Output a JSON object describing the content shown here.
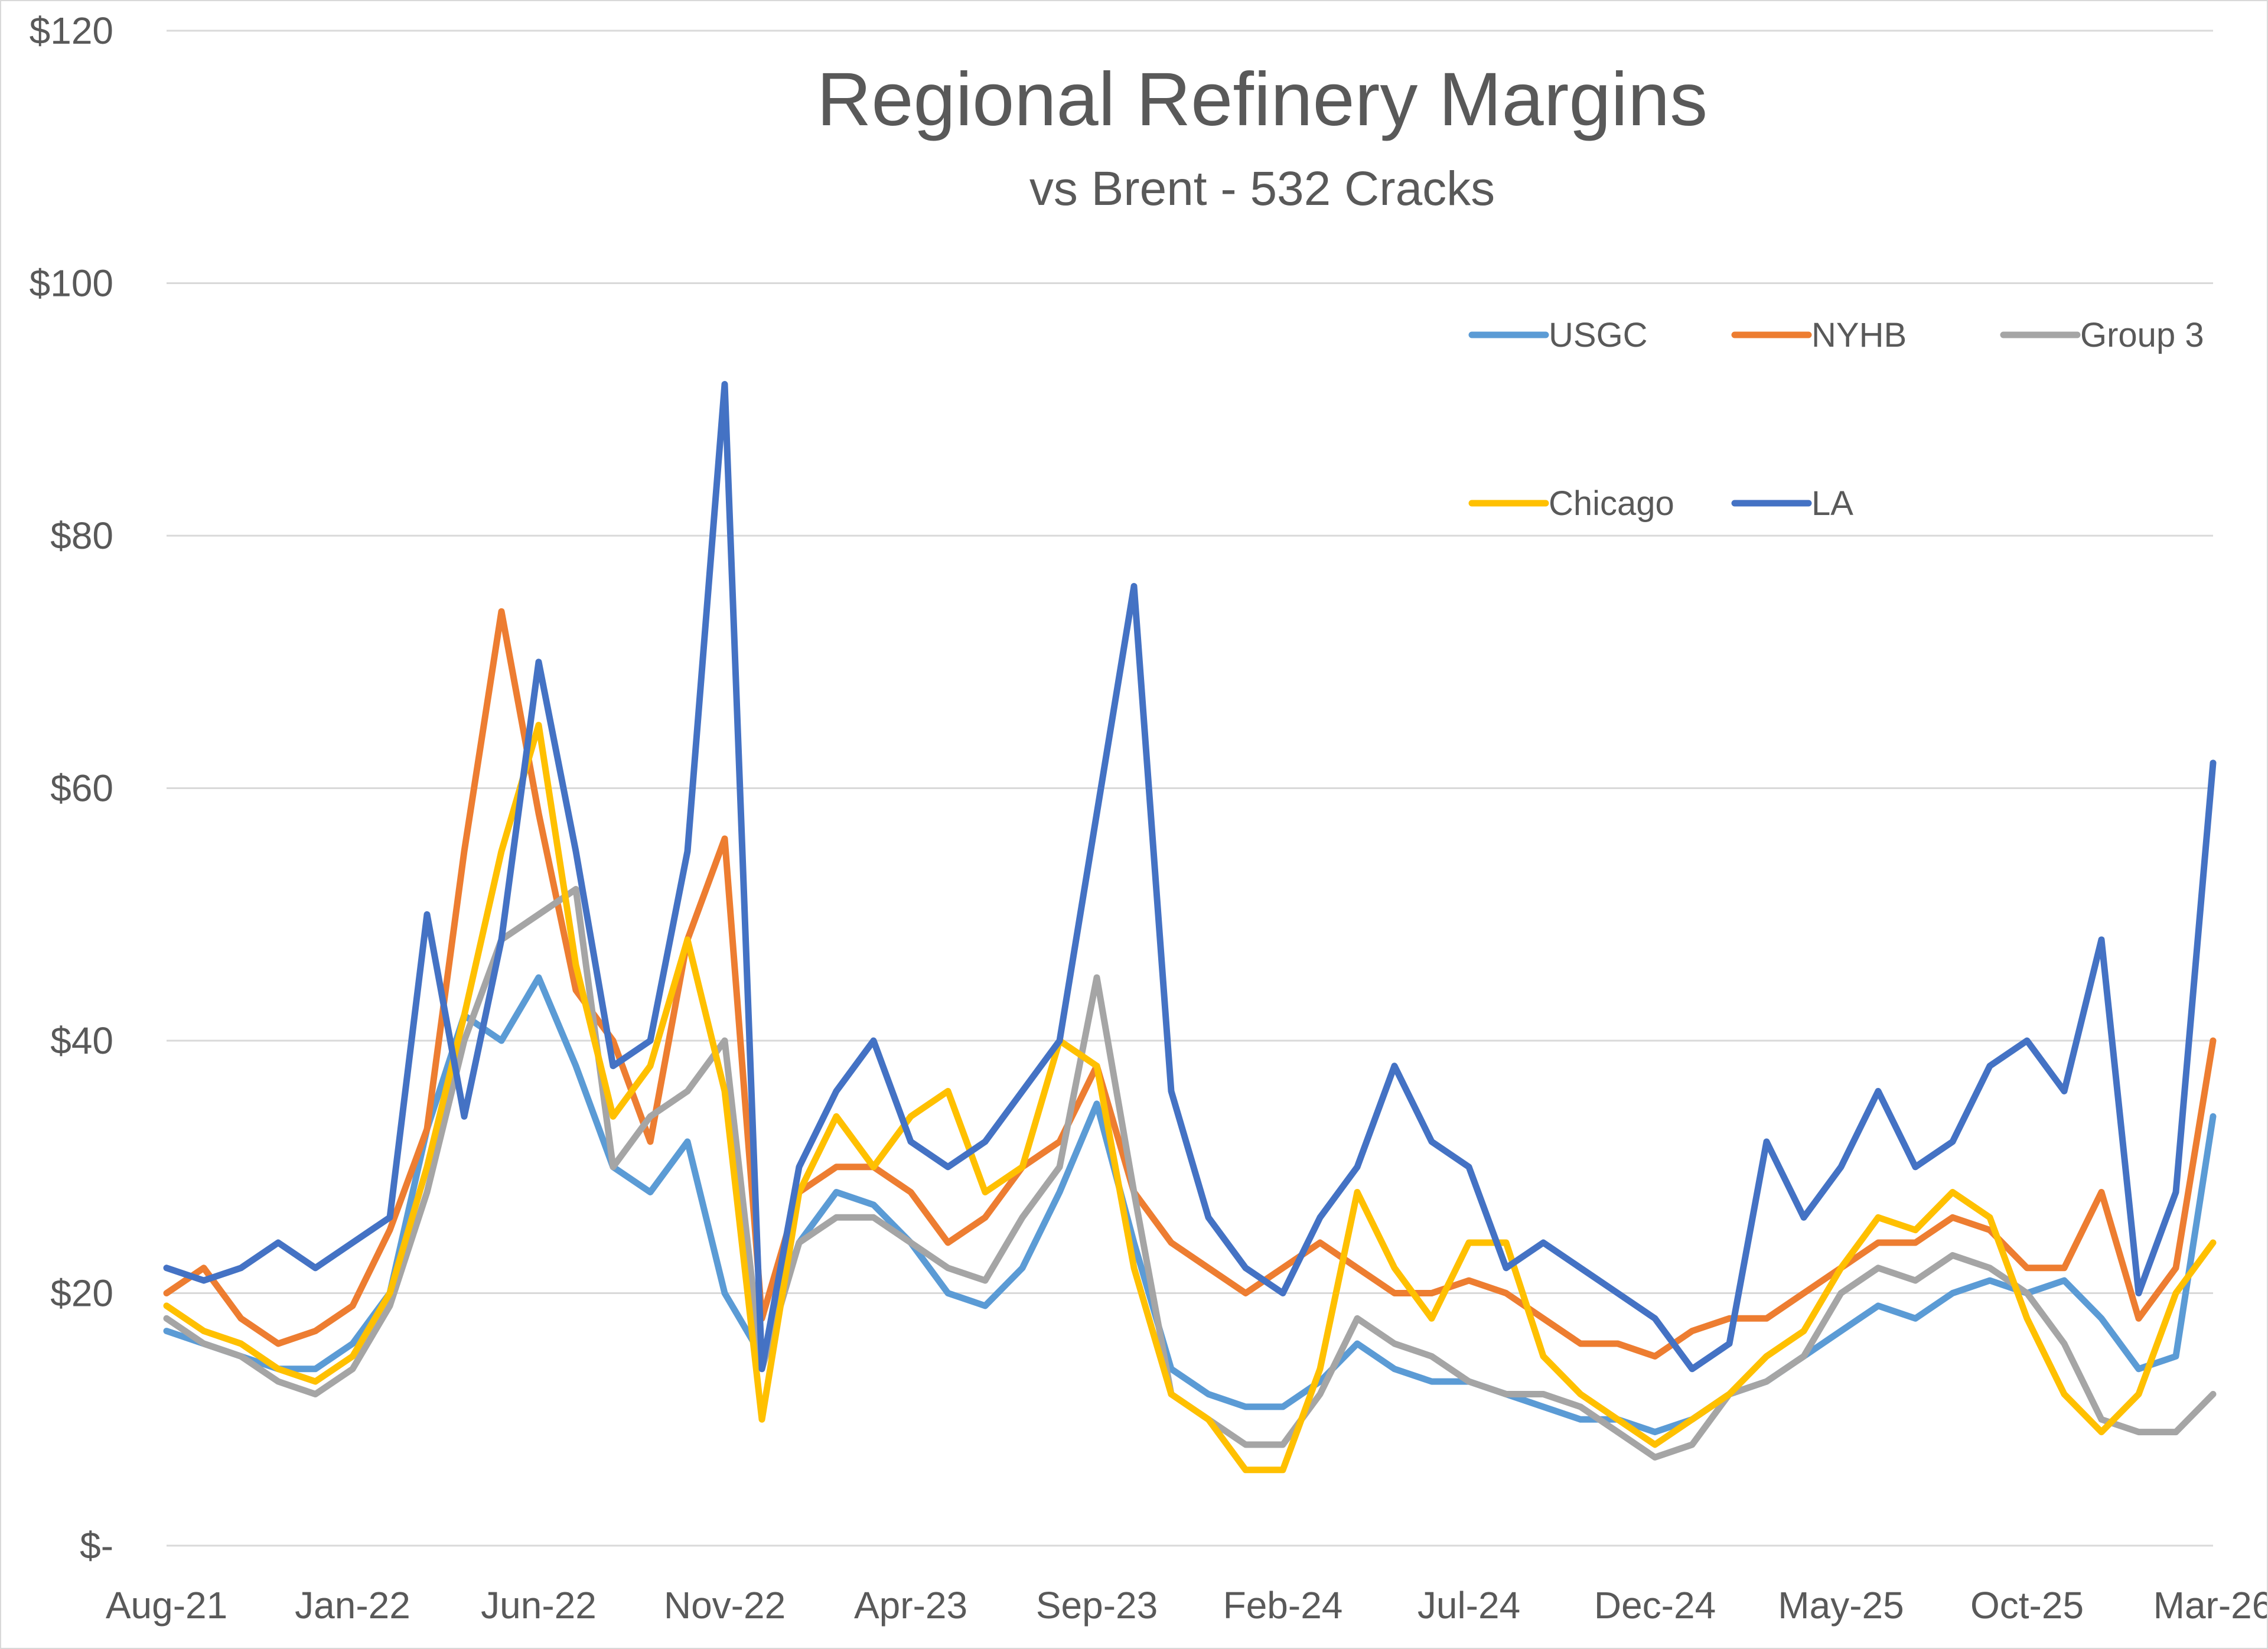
{
  "chart_data": {
    "type": "line",
    "title": "Regional Refinery Margins",
    "subtitle": "vs Brent - 532 Cracks",
    "xlabel": "",
    "ylabel": "",
    "x_ticks": [
      "Aug-21",
      "Jan-22",
      "Jun-22",
      "Nov-22",
      "Apr-23",
      "Sep-23",
      "Feb-24",
      "Jul-24",
      "Dec-24",
      "May-25",
      "Oct-25",
      "Mar-26"
    ],
    "y_ticks": [
      {
        "value": 0,
        "label": "$-"
      },
      {
        "value": 20,
        "label": "$20"
      },
      {
        "value": 40,
        "label": "$40"
      },
      {
        "value": 60,
        "label": "$60"
      },
      {
        "value": 80,
        "label": "$80"
      },
      {
        "value": 100,
        "label": "$100"
      },
      {
        "value": 120,
        "label": "$120"
      }
    ],
    "ylim": [
      0,
      120
    ],
    "grid": "horizontal",
    "legend_position": "top-right",
    "x": [
      "2021-08",
      "2021-09",
      "2021-10",
      "2021-11",
      "2021-12",
      "2022-01",
      "2022-02",
      "2022-03",
      "2022-04",
      "2022-05",
      "2022-06",
      "2022-07",
      "2022-08",
      "2022-09",
      "2022-10",
      "2022-11",
      "2022-12",
      "2023-01",
      "2023-02",
      "2023-03",
      "2023-04",
      "2023-05",
      "2023-06",
      "2023-07",
      "2023-08",
      "2023-09",
      "2023-10",
      "2023-11",
      "2023-12",
      "2024-01",
      "2024-02",
      "2024-03",
      "2024-04",
      "2024-05",
      "2024-06",
      "2024-07",
      "2024-08",
      "2024-09",
      "2024-10",
      "2024-11",
      "2024-12",
      "2025-01",
      "2025-02",
      "2025-03",
      "2025-04",
      "2025-05",
      "2025-06",
      "2025-07",
      "2025-08",
      "2025-09",
      "2025-10",
      "2025-11",
      "2025-12",
      "2026-01",
      "2026-02",
      "2026-03"
    ],
    "series": [
      {
        "name": "USGC",
        "color": "#5B9BD5",
        "values": [
          17,
          16,
          15,
          14,
          14,
          16,
          20,
          33,
          42,
          40,
          45,
          38,
          30,
          28,
          32,
          20,
          15,
          24,
          28,
          27,
          24,
          20,
          19,
          22,
          28,
          35,
          24,
          14,
          12,
          11,
          11,
          13,
          16,
          14,
          13,
          13,
          12,
          11,
          10,
          10,
          9,
          10,
          12,
          13,
          15,
          17,
          19,
          18,
          20,
          21,
          20,
          21,
          18,
          14,
          15,
          34
        ]
      },
      {
        "name": "NYHB",
        "color": "#ED7D31",
        "values": [
          20,
          22,
          18,
          16,
          17,
          19,
          25,
          33,
          55,
          74,
          58,
          44,
          40,
          32,
          48,
          56,
          18,
          28,
          30,
          30,
          28,
          24,
          26,
          30,
          32,
          38,
          28,
          24,
          22,
          20,
          22,
          24,
          22,
          20,
          20,
          21,
          20,
          18,
          16,
          16,
          15,
          17,
          18,
          18,
          20,
          22,
          24,
          24,
          26,
          25,
          22,
          22,
          28,
          18,
          22,
          40
        ]
      },
      {
        "name": "Group 3",
        "color": "#A5A5A5",
        "values": [
          18,
          16,
          15,
          13,
          12,
          14,
          19,
          28,
          40,
          48,
          50,
          52,
          30,
          34,
          36,
          40,
          14,
          24,
          26,
          26,
          24,
          22,
          21,
          26,
          30,
          45,
          28,
          12,
          10,
          8,
          8,
          12,
          18,
          16,
          15,
          13,
          12,
          12,
          11,
          9,
          7,
          8,
          12,
          13,
          15,
          20,
          22,
          21,
          23,
          22,
          20,
          16,
          10,
          9,
          9,
          12
        ]
      },
      {
        "name": "Chicago",
        "color": "#FFC000",
        "values": [
          19,
          17,
          16,
          14,
          13,
          15,
          20,
          30,
          42,
          55,
          65,
          46,
          34,
          38,
          48,
          36,
          10,
          28,
          34,
          30,
          34,
          36,
          28,
          30,
          40,
          38,
          22,
          12,
          10,
          6,
          6,
          14,
          28,
          22,
          18,
          24,
          24,
          15,
          12,
          10,
          8,
          10,
          12,
          15,
          17,
          22,
          26,
          25,
          28,
          26,
          18,
          12,
          9,
          12,
          20,
          24
        ]
      },
      {
        "name": "LA",
        "color": "#4472C4",
        "values": [
          22,
          21,
          22,
          24,
          22,
          24,
          26,
          50,
          34,
          48,
          70,
          55,
          38,
          40,
          55,
          92,
          14,
          30,
          36,
          40,
          32,
          30,
          32,
          36,
          40,
          58,
          76,
          36,
          26,
          22,
          20,
          26,
          30,
          38,
          32,
          30,
          22,
          24,
          22,
          20,
          18,
          14,
          16,
          32,
          26,
          30,
          36,
          30,
          32,
          38,
          40,
          36,
          48,
          20,
          28,
          62
        ]
      }
    ]
  }
}
